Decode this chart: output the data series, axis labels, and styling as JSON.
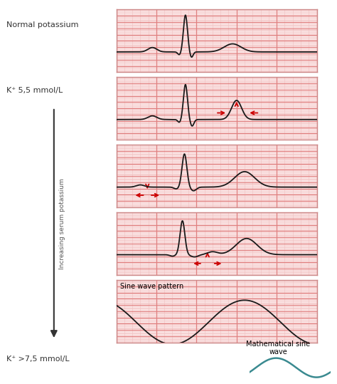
{
  "bg_color": "#fce8e8",
  "grid_major_color": "#e08080",
  "grid_minor_color": "#f0c0c0",
  "ecg_color": "#1a1a1a",
  "arrow_color": "#cc0000",
  "label_color": "#333333",
  "teal_color": "#3a8a90",
  "left_label_top": "Normal potassium",
  "left_label_k55": "K⁺ 5,5 mmol/L",
  "left_label_k75": "K⁺ >7,5 mmol/L",
  "left_label_increasing": "Increasing serum potassium",
  "sine_panel_label": "Sine wave pattern",
  "math_sine_label1": "Mathematical sine",
  "math_sine_label2": "wave",
  "border_color": "#cc8888",
  "figsize": [
    4.74,
    5.39
  ],
  "dpi": 100
}
